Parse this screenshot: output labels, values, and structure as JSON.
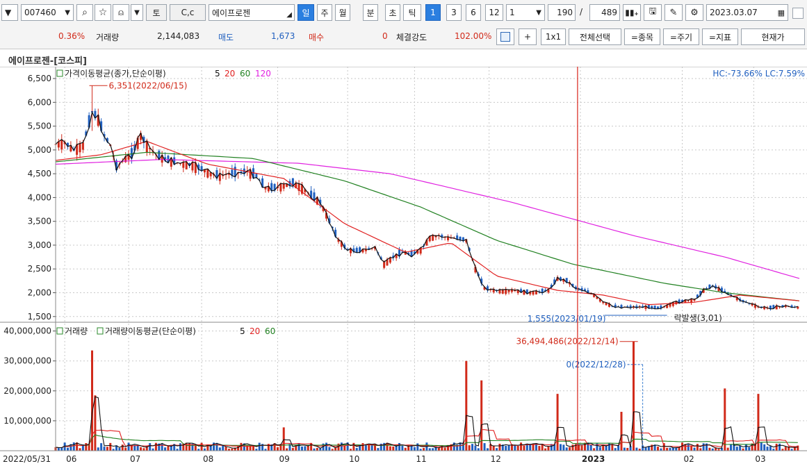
{
  "toolbar": {
    "stock_code": "007460",
    "buttons": {
      "search": "⌕",
      "star": "☆",
      "bell": "♫",
      "to": "토",
      "cc": "C,c"
    },
    "stock_name": "에이프로젠",
    "periods": [
      "일",
      "주",
      "월",
      "분",
      "초",
      "틱"
    ],
    "active_period": "일",
    "intervals": [
      "1",
      "3",
      "6",
      "12"
    ],
    "active_interval": "1",
    "interval_select": "1",
    "count": "190",
    "slash": "/",
    "total": "489",
    "date": "2023.03.07"
  },
  "quote": {
    "change_pct": "0.36%",
    "volume_label": "거래량",
    "volume": "2,144,083",
    "sell_label": "매도",
    "sell": "1,673",
    "buy_label": "매수",
    "buy": "0",
    "strength_label": "체결강도",
    "strength": "102.00%",
    "buttons": [
      "+",
      "1x1",
      "전체선택",
      "=종목",
      "=주기",
      "=지표",
      "현재가"
    ]
  },
  "chart_title": "에이프로젠-[코스피]",
  "chart_data": [
    {
      "type": "candlestick",
      "legend_title": "가격이동평균(종가,단순이평)",
      "ma_periods": [
        {
          "name": "5",
          "color": "#111111"
        },
        {
          "name": "20",
          "color": "#e02020"
        },
        {
          "name": "60",
          "color": "#208020"
        },
        {
          "name": "120",
          "color": "#e020e0"
        }
      ],
      "hc_lc": "HC:-73.66%  LC:7.59%",
      "yticks": [
        "6,500",
        "6,000",
        "5,500",
        "5,000",
        "4,500",
        "4,000",
        "3,500",
        "3,000",
        "2,500",
        "2,000",
        "1,500"
      ],
      "ytick_values": [
        6500,
        6000,
        5500,
        5000,
        4500,
        4000,
        3500,
        3000,
        2500,
        2000,
        1500
      ],
      "ylim": [
        1380,
        6720
      ],
      "annotations": {
        "high": {
          "text": "6,351(2022/06/15)",
          "value": 6351,
          "date": "2022/06/15"
        },
        "low": {
          "text": "1,555(2023/01/19)",
          "value": 1555,
          "date": "2023/01/19"
        },
        "event": {
          "text": "락발생(3,01)"
        }
      },
      "close_series": [
        [
          0,
          5120
        ],
        [
          6,
          5150
        ],
        [
          12,
          5000
        ],
        [
          18,
          5100
        ],
        [
          24,
          5800
        ],
        [
          28,
          5650
        ],
        [
          32,
          5300
        ],
        [
          36,
          5100
        ],
        [
          40,
          4650
        ],
        [
          46,
          4820
        ],
        [
          50,
          4900
        ],
        [
          56,
          5300
        ],
        [
          60,
          5100
        ],
        [
          66,
          4900
        ],
        [
          72,
          4800
        ],
        [
          78,
          4750
        ],
        [
          84,
          4700
        ],
        [
          90,
          4680
        ],
        [
          96,
          4600
        ],
        [
          102,
          4500
        ],
        [
          108,
          4450
        ],
        [
          114,
          4500
        ],
        [
          120,
          4520
        ],
        [
          126,
          4550
        ],
        [
          132,
          4450
        ],
        [
          138,
          4200
        ],
        [
          144,
          4200
        ],
        [
          150,
          4250
        ],
        [
          156,
          4300
        ],
        [
          162,
          4200
        ],
        [
          168,
          4050
        ],
        [
          174,
          3900
        ],
        [
          180,
          3500
        ],
        [
          186,
          3100
        ],
        [
          192,
          2900
        ],
        [
          198,
          2880
        ],
        [
          204,
          2900
        ],
        [
          210,
          2950
        ],
        [
          216,
          2600
        ],
        [
          222,
          2750
        ],
        [
          228,
          2850
        ],
        [
          234,
          2800
        ],
        [
          240,
          2900
        ],
        [
          246,
          3150
        ],
        [
          252,
          3200
        ],
        [
          258,
          3150
        ],
        [
          264,
          3150
        ],
        [
          270,
          3100
        ],
        [
          276,
          2500
        ],
        [
          282,
          2100
        ],
        [
          288,
          2050
        ],
        [
          294,
          2030
        ],
        [
          300,
          2050
        ],
        [
          306,
          2030
        ],
        [
          312,
          2000
        ],
        [
          318,
          2020
        ],
        [
          324,
          2050
        ],
        [
          330,
          2300
        ],
        [
          336,
          2250
        ],
        [
          342,
          2100
        ],
        [
          348,
          2050
        ],
        [
          354,
          1950
        ],
        [
          360,
          1800
        ],
        [
          366,
          1720
        ],
        [
          372,
          1700
        ],
        [
          378,
          1700
        ],
        [
          384,
          1700
        ],
        [
          390,
          1700
        ],
        [
          396,
          1680
        ],
        [
          402,
          1720
        ],
        [
          408,
          1800
        ],
        [
          414,
          1830
        ],
        [
          420,
          1850
        ],
        [
          426,
          2050
        ],
        [
          432,
          2150
        ],
        [
          438,
          2050
        ],
        [
          444,
          1950
        ],
        [
          450,
          1850
        ],
        [
          456,
          1780
        ],
        [
          462,
          1700
        ],
        [
          468,
          1680
        ],
        [
          474,
          1700
        ],
        [
          480,
          1720
        ],
        [
          489,
          1690
        ]
      ],
      "ma20_series": [
        [
          0,
          4780
        ],
        [
          30,
          4900
        ],
        [
          60,
          5180
        ],
        [
          100,
          4700
        ],
        [
          150,
          4400
        ],
        [
          190,
          3450
        ],
        [
          230,
          2850
        ],
        [
          260,
          3050
        ],
        [
          290,
          2350
        ],
        [
          330,
          2050
        ],
        [
          360,
          1950
        ],
        [
          390,
          1750
        ],
        [
          420,
          1800
        ],
        [
          450,
          1950
        ],
        [
          489,
          1830
        ]
      ],
      "ma60_series": [
        [
          0,
          4750
        ],
        [
          60,
          4950
        ],
        [
          130,
          4820
        ],
        [
          190,
          4350
        ],
        [
          240,
          3800
        ],
        [
          290,
          3100
        ],
        [
          340,
          2600
        ],
        [
          400,
          2200
        ],
        [
          440,
          2000
        ],
        [
          489,
          1830
        ]
      ],
      "ma120_series": [
        [
          0,
          4700
        ],
        [
          70,
          4800
        ],
        [
          160,
          4720
        ],
        [
          220,
          4500
        ],
        [
          300,
          3900
        ],
        [
          380,
          3200
        ],
        [
          440,
          2750
        ],
        [
          489,
          2300
        ]
      ]
    },
    {
      "type": "bar",
      "legend_title": "거래량",
      "legend_ma_title": "거래량이동평균(단순이평)",
      "ma_periods": [
        {
          "name": "5",
          "color": "#111111"
        },
        {
          "name": "20",
          "color": "#e02020"
        },
        {
          "name": "60",
          "color": "#208020"
        }
      ],
      "yticks": [
        "40,000,000",
        "30,000,000",
        "20,000,000",
        "10,000,000"
      ],
      "ytick_values": [
        40000000,
        30000000,
        20000000,
        10000000
      ],
      "ylim": [
        0,
        42000000
      ],
      "annotations": {
        "max": {
          "text": "36,494,486(2022/12/14)",
          "value": 36494486,
          "date": "2022/12/14"
        },
        "zero": {
          "text": "0(2022/12/28)",
          "value": 0,
          "date": "2022/12/28"
        }
      },
      "spikes": [
        [
          24,
          33500000
        ],
        [
          27,
          18500000
        ],
        [
          150,
          7800000
        ],
        [
          270,
          30000000
        ],
        [
          280,
          23500000
        ],
        [
          330,
          19000000
        ],
        [
          372,
          13000000
        ],
        [
          381,
          36494486
        ],
        [
          440,
          20800000
        ],
        [
          462,
          19000000
        ]
      ]
    }
  ],
  "x_axis": {
    "labels": [
      "2022/05/31",
      "06",
      "07",
      "08",
      "09",
      "10",
      "11",
      "12",
      "2023",
      "02",
      "03"
    ],
    "positions": [
      0,
      6,
      48,
      96,
      146,
      192,
      236,
      285,
      345,
      412,
      459
    ]
  },
  "colors": {
    "up": "#d12a1a",
    "down": "#1f5fbf",
    "grid": "#c8c8c8",
    "marker": "#d9231a",
    "cursor": "#3a7fd0"
  }
}
